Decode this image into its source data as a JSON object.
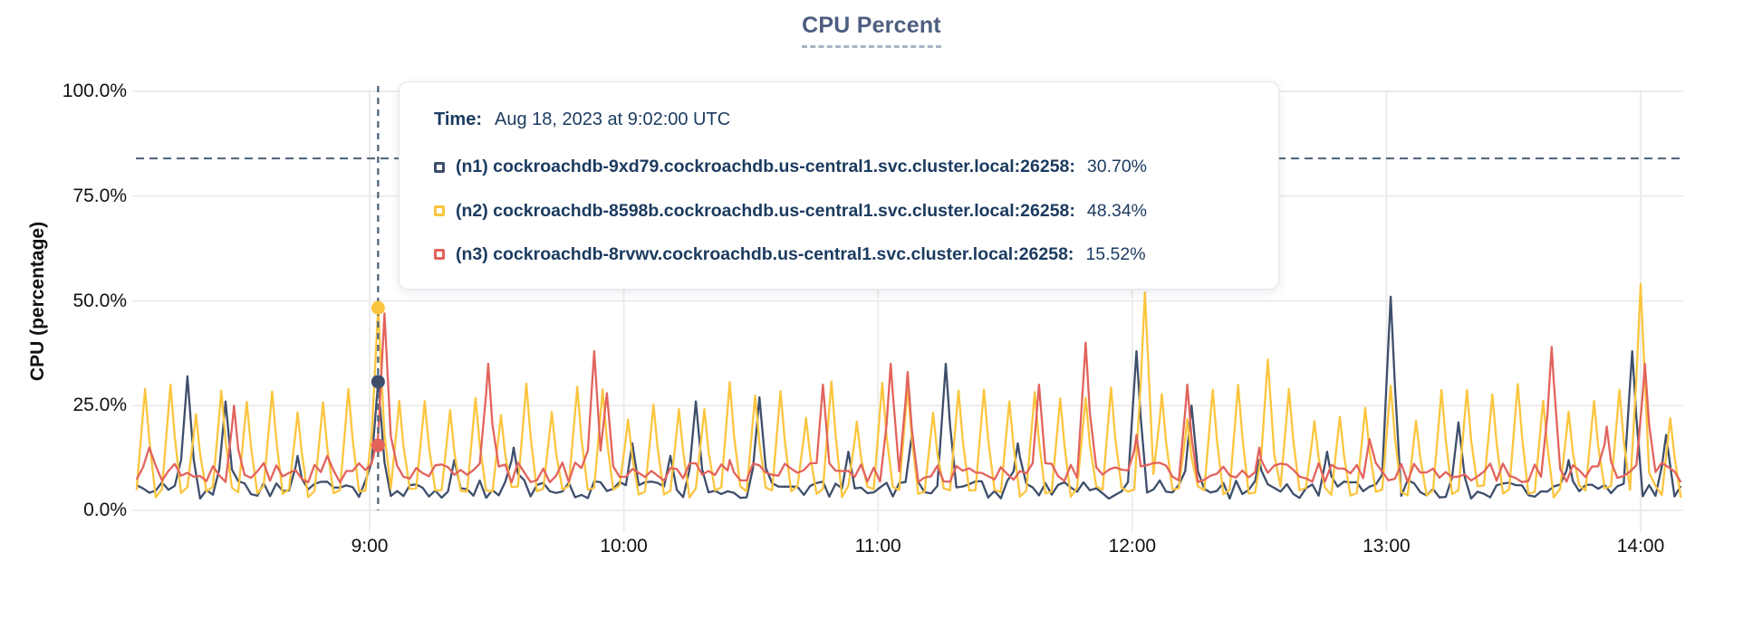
{
  "title": {
    "text": "CPU Percent"
  },
  "colors": {
    "n1": "#3E4E6B",
    "n2": "#FBC53E",
    "n3": "#E2635C",
    "grid": "#ECECEC",
    "dashed_line": "#55697E",
    "title": "#4D5E80",
    "tooltip_text": "#1B3A5F",
    "axis_text": "#111111"
  },
  "y_axis": {
    "label": "CPU (percentage)",
    "ticks": [
      {
        "value": 100,
        "label": "100.0%"
      },
      {
        "value": 75,
        "label": "75.0%"
      },
      {
        "value": 50,
        "label": "50.0%"
      },
      {
        "value": 25,
        "label": "25.0%"
      },
      {
        "value": 0,
        "label": "0.0%"
      }
    ]
  },
  "x_axis": {
    "ticks": [
      {
        "minute": 60,
        "label": "9:00"
      },
      {
        "minute": 120,
        "label": "10:00"
      },
      {
        "minute": 180,
        "label": "11:00"
      },
      {
        "minute": 240,
        "label": "12:00"
      },
      {
        "minute": 300,
        "label": "13:00"
      },
      {
        "minute": 360,
        "label": "14:00"
      }
    ]
  },
  "threshold": {
    "value": 84
  },
  "hover": {
    "minute": 62,
    "time_text": "9:02:00"
  },
  "tooltip": {
    "time_label": "Time:",
    "time_value": "Aug 18, 2023 at 9:02:00 UTC",
    "rows": [
      {
        "name": "(n1) cockroachdb-9xd79.cockroachdb.us-central1.svc.cluster.local:26258:",
        "value": "30.70%",
        "value_num": 30.7,
        "color": "#3E4E6B"
      },
      {
        "name": "(n2) cockroachdb-8598b.cockroachdb.us-central1.svc.cluster.local:26258:",
        "value": "48.34%",
        "value_num": 48.34,
        "color": "#FBC53E"
      },
      {
        "name": "(n3) cockroachdb-8rvwv.cockroachdb.us-central1.svc.cluster.local:26258:",
        "value": "15.52%",
        "value_num": 15.52,
        "color": "#E2635C"
      }
    ]
  },
  "chart_data": {
    "type": "line",
    "title": "CPU Percent",
    "xlabel": "",
    "ylabel": "CPU (percentage)",
    "ylim": [
      0,
      100
    ],
    "grid": true,
    "x_range_minutes": [
      5,
      370
    ],
    "x_tick_labels": [
      "9:00",
      "10:00",
      "11:00",
      "12:00",
      "13:00",
      "14:00"
    ],
    "y_tick_labels": [
      "0.0%",
      "25.0%",
      "50.0%",
      "75.0%",
      "100.0%"
    ],
    "sample_step_minutes": 1.5,
    "noise_seed": 1337,
    "hover_point": {
      "minute": 62,
      "time": "Aug 18, 2023 at 9:02:00 UTC",
      "values": {
        "n1": 30.7,
        "n2": 48.34,
        "n3": 15.52
      }
    },
    "series": [
      {
        "id": "n1",
        "name": "(n1) cockroachdb-9xd79.cockroachdb.us-central1.svc.cluster.local:26258",
        "color": "#3E4E6B",
        "baseline": 5,
        "wiggle": 2.2,
        "spike_width": 2.4,
        "spikes": [
          [
            17,
            32
          ],
          [
            26,
            26
          ],
          [
            43,
            13
          ],
          [
            62,
            30.7
          ],
          [
            80,
            12
          ],
          [
            94,
            15
          ],
          [
            122,
            16
          ],
          [
            131,
            13
          ],
          [
            137,
            26
          ],
          [
            152,
            27
          ],
          [
            173,
            14
          ],
          [
            188,
            18
          ],
          [
            196,
            35
          ],
          [
            213,
            16
          ],
          [
            241,
            38
          ],
          [
            254,
            25
          ],
          [
            270,
            12
          ],
          [
            286,
            14
          ],
          [
            301,
            51
          ],
          [
            317,
            21
          ],
          [
            343,
            12
          ],
          [
            358,
            38
          ],
          [
            366,
            18
          ]
        ]
      },
      {
        "id": "n2",
        "name": "(n2) cockroachdb-8598b.cockroachdb.us-central1.svc.cluster.local:26258",
        "color": "#FBC53E",
        "baseline": 4.5,
        "wiggle": 1.5,
        "spike_width": 2.4,
        "periodic": {
          "start": 7,
          "interval": 6,
          "min_height": 21,
          "max_height": 31
        },
        "spikes": [
          [
            62,
            48.34
          ],
          [
            243,
            52
          ],
          [
            272,
            36
          ],
          [
            360,
            54
          ]
        ]
      },
      {
        "id": "n3",
        "name": "(n3) cockroachdb-8rvwv.cockroachdb.us-central1.svc.cluster.local:26258",
        "color": "#E2635C",
        "baseline": 9,
        "wiggle": 2.4,
        "spike_width": 2.4,
        "spikes": [
          [
            8,
            15
          ],
          [
            28,
            25
          ],
          [
            50,
            13
          ],
          [
            63.5,
            47
          ],
          [
            88,
            35
          ],
          [
            113,
            38
          ],
          [
            116,
            28
          ],
          [
            145,
            12
          ],
          [
            167,
            30
          ],
          [
            183,
            35
          ],
          [
            187,
            33
          ],
          [
            218,
            30
          ],
          [
            229,
            40
          ],
          [
            241,
            18
          ],
          [
            253,
            30
          ],
          [
            270,
            15
          ],
          [
            296,
            17
          ],
          [
            339,
            39
          ],
          [
            352,
            20
          ],
          [
            361,
            35
          ]
        ]
      }
    ]
  }
}
